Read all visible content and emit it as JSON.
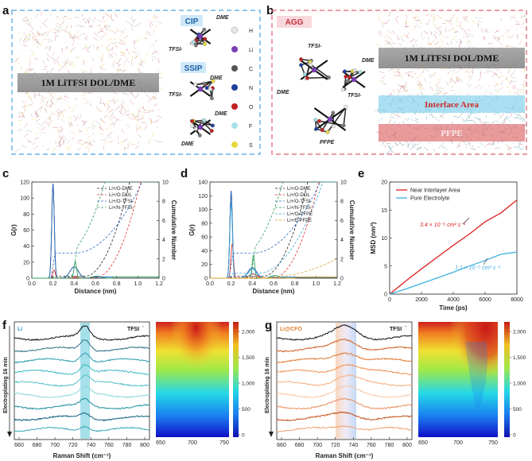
{
  "panels": {
    "a": {
      "label": "a",
      "cip_label": "CIP",
      "ssip_label": "SSIP",
      "band_text": "1M LiTFSI DOL/DME",
      "molecule_labels": [
        "DME",
        "TFSI-",
        "DME",
        "TFSI-",
        "DME",
        "DME"
      ],
      "element_legend": [
        "H",
        "Li",
        "C",
        "N",
        "O",
        "F",
        "S"
      ],
      "element_colors": [
        "#e8e8e8",
        "#7a3fb0",
        "#555555",
        "#1f3f9a",
        "#c02020",
        "#a8e0e8",
        "#e8d840"
      ]
    },
    "b": {
      "label": "b",
      "agg_label": "AGG",
      "band_text": "1M LiTFSI DOL/DME",
      "interface_text": "Interface Area",
      "pfpe_text": "PFPE",
      "molecule_labels": [
        "TFSI-",
        "DME",
        "DME",
        "TFSI-",
        "PFPE"
      ]
    },
    "c": {
      "label": "c"
    },
    "d": {
      "label": "d"
    },
    "e": {
      "label": "e"
    },
    "f": {
      "label": "f",
      "sample_label": "Li",
      "tfsi_label": "TFSI",
      "tfsi_sup": "-",
      "y_label": "Electroplating 16 min",
      "x_label": "Raman Shift (cm⁻¹)",
      "x_ticks": [
        "660",
        "680",
        "700",
        "720",
        "740",
        "760",
        "780",
        "800"
      ],
      "map_x_ticks": [
        "650",
        "700",
        "750"
      ],
      "colorbar_ticks": [
        "2,000",
        "1,500",
        "1,000",
        "500",
        "0"
      ]
    },
    "g": {
      "label": "g",
      "sample_label": "Li@CFO",
      "tfsi_label": "TFSI",
      "tfsi_sup": "-",
      "y_label": "Electroplating 16 min",
      "x_label": "Raman Shift (cm⁻¹)",
      "x_ticks": [
        "660",
        "680",
        "700",
        "720",
        "740",
        "760",
        "780",
        "800"
      ],
      "map_x_ticks": [
        "650",
        "700",
        "750"
      ],
      "colorbar_ticks": [
        "2,000",
        "1,500",
        "1,000",
        "500",
        "0"
      ]
    }
  },
  "chart_data": [
    {
      "id": "c",
      "type": "line",
      "xlabel": "Distance (nm)",
      "ylabel": "G(r)",
      "y2label": "Cumulative Number",
      "xlim": [
        0.0,
        1.2
      ],
      "ylim": [
        0,
        120
      ],
      "y2lim": [
        0,
        10
      ],
      "x_ticks": [
        "0.0",
        "0.2",
        "0.4",
        "0.6",
        "0.8",
        "1.0",
        "1.2"
      ],
      "y_ticks": [
        "0",
        "20",
        "40",
        "60",
        "80",
        "100",
        "120"
      ],
      "y2_ticks": [
        "0",
        "2",
        "4",
        "6",
        "8",
        "10"
      ],
      "series": [
        {
          "name": "Li+/O-DME",
          "color": "#222222",
          "peak_x": 0.2,
          "peak_y": 118
        },
        {
          "name": "Li+/O-DOL",
          "color": "#e03030",
          "peak_x": 0.21,
          "peak_y": 10
        },
        {
          "name": "Li+/O-TFSI-",
          "color": "#2f6fc8",
          "peak_x": 0.2,
          "peak_y": 118
        },
        {
          "name": "Li+/N-TFSI-",
          "color": "#2f9f5f",
          "peak_x": 0.41,
          "peak_y": 21
        }
      ]
    },
    {
      "id": "d",
      "type": "line",
      "xlabel": "Distance (nm)",
      "ylabel": "G(r)",
      "y2label": "Cumulative Number",
      "xlim": [
        0.0,
        1.2
      ],
      "ylim": [
        0,
        140
      ],
      "y2lim": [
        0,
        10
      ],
      "x_ticks": [
        "0.0",
        "0.2",
        "0.4",
        "0.6",
        "0.8",
        "1.0",
        "1.2"
      ],
      "y_ticks": [
        "0",
        "20",
        "40",
        "60",
        "80",
        "100",
        "120",
        "140"
      ],
      "y2_ticks": [
        "0",
        "2",
        "4",
        "6",
        "8",
        "10"
      ],
      "series": [
        {
          "name": "Li+/O-DME",
          "color": "#222222",
          "peak_x": 0.2,
          "peak_y": 127
        },
        {
          "name": "Li+/O-DOL",
          "color": "#e03030",
          "peak_x": 0.21,
          "peak_y": 50
        },
        {
          "name": "Li+/O-TFSI-",
          "color": "#2f6fc8",
          "peak_x": 0.2,
          "peak_y": 127
        },
        {
          "name": "Li+/N-TFSI-",
          "color": "#2f9f5f",
          "peak_x": 0.41,
          "peak_y": 33
        },
        {
          "name": "Li+/O-PFPE",
          "color": "#3fa0d8",
          "peak_x": 0.2,
          "peak_y": 110
        },
        {
          "name": "Li+/F-PFPE",
          "color": "#d8a030",
          "peak_x": 0.45,
          "peak_y": 2
        }
      ]
    },
    {
      "id": "e",
      "type": "line",
      "xlabel": "Time (ps)",
      "ylabel": "MSD (nm²)",
      "xlim": [
        0,
        8000
      ],
      "ylim": [
        0,
        20
      ],
      "x_ticks": [
        "0",
        "2000",
        "4000",
        "6000",
        "8000"
      ],
      "y_ticks": [
        "0",
        "5",
        "10",
        "15",
        "20"
      ],
      "series": [
        {
          "name": "Near Interlayer Area",
          "color": "#e02020",
          "x": [
            0,
            1000,
            2000,
            3000,
            4000,
            5000,
            6000,
            7000,
            8000
          ],
          "y": [
            0,
            2.3,
            4.5,
            6.6,
            8.7,
            10.7,
            12.9,
            14.5,
            16.8
          ]
        },
        {
          "name": "Pure Electrolyte",
          "color": "#3fb0e0",
          "x": [
            0,
            1000,
            2000,
            3000,
            4000,
            5000,
            6000,
            7000,
            8000
          ],
          "y": [
            0,
            0.9,
            1.9,
            2.9,
            3.9,
            5.0,
            6.0,
            7.1,
            7.5
          ]
        }
      ],
      "annotations": [
        {
          "text": "3.4 × 10⁻⁵ cm² s⁻¹",
          "color": "#e02020"
        },
        {
          "text": "1.1 × 10⁻⁵ cm² s⁻¹",
          "color": "#3fb0e0"
        }
      ]
    }
  ]
}
